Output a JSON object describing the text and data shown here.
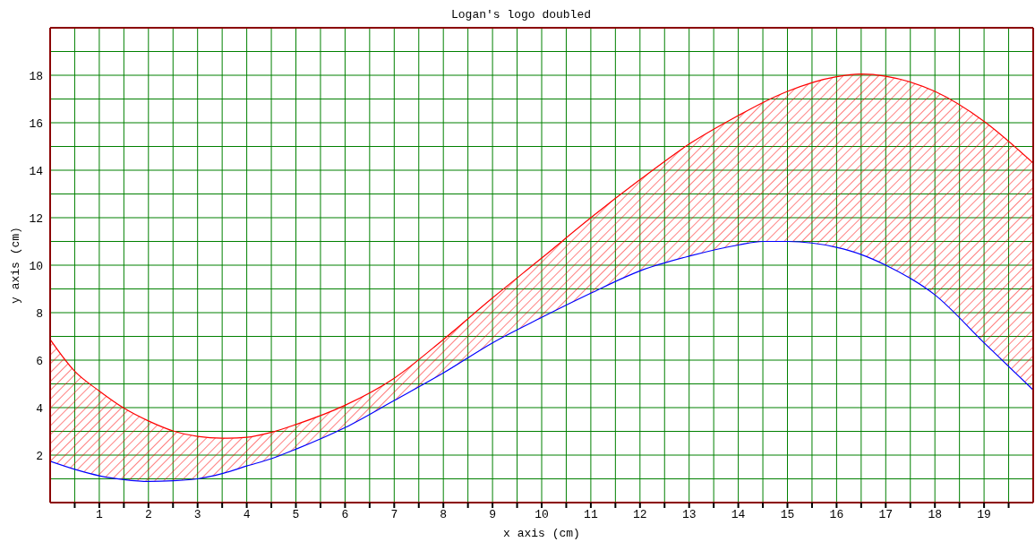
{
  "chart_data": {
    "type": "line",
    "title": "Logan's logo doubled",
    "xlabel": "x axis (cm)",
    "ylabel": "y axis (cm)",
    "x": [
      0,
      0.5,
      1,
      1.5,
      2,
      2.5,
      3,
      3.5,
      4,
      4.5,
      5,
      6,
      7,
      8,
      9,
      10,
      11,
      12,
      13,
      14,
      14.5,
      15,
      16,
      16.5,
      17,
      18,
      19,
      20
    ],
    "series": [
      {
        "color": "#0000ff",
        "values": [
          1.74,
          1.4,
          1.13,
          0.97,
          0.89,
          0.92,
          1.0,
          1.22,
          1.54,
          1.85,
          2.25,
          3.16,
          4.3,
          5.46,
          6.73,
          7.8,
          8.82,
          9.76,
          10.38,
          10.85,
          11.0,
          11.0,
          10.75,
          10.45,
          10.0,
          8.75,
          6.73,
          4.74
        ]
      },
      {
        "color": "#ff0000",
        "values": [
          6.87,
          5.53,
          4.7,
          3.98,
          3.44,
          3.02,
          2.79,
          2.71,
          2.75,
          2.96,
          3.29,
          4.1,
          5.24,
          6.87,
          8.62,
          10.3,
          12.0,
          13.6,
          15.1,
          16.3,
          16.85,
          17.32,
          17.94,
          18.05,
          17.96,
          17.32,
          16.06,
          14.3
        ],
        "lower": [
          1.74,
          1.4,
          1.13,
          0.97,
          0.89,
          0.92,
          1.0,
          1.22,
          1.54,
          1.85,
          2.25,
          3.16,
          4.3,
          5.46,
          6.73,
          7.8,
          8.82,
          9.76,
          10.38,
          10.85,
          11.0,
          11.0,
          10.75,
          10.45,
          10.0,
          8.75,
          6.73,
          4.74
        ],
        "upper": [
          6.87,
          5.53,
          4.7,
          3.98,
          3.44,
          3.02,
          2.79,
          2.71,
          2.75,
          2.96,
          3.29,
          4.1,
          5.24,
          6.87,
          8.62,
          10.3,
          12.0,
          13.6,
          15.1,
          16.3,
          16.85,
          17.32,
          17.94,
          18.05,
          17.96,
          17.32,
          16.06,
          14.3
        ]
      }
    ],
    "xlim": [
      0,
      20
    ],
    "xticks": [
      {
        "value": 0.5,
        "label": null
      },
      1,
      {
        "value": 1.5,
        "label": null
      },
      2,
      {
        "value": 2.5,
        "label": null
      },
      3,
      {
        "value": 3.5,
        "label": null
      },
      4,
      {
        "value": 4.5,
        "label": null
      },
      5,
      {
        "value": 5.5,
        "label": null
      },
      6,
      {
        "value": 6.5,
        "label": null
      },
      7,
      {
        "value": 7.5,
        "label": null
      },
      8,
      {
        "value": 8.5,
        "label": null
      },
      9,
      {
        "value": 9.5,
        "label": null
      },
      10,
      {
        "value": 10.5,
        "label": null
      },
      11,
      {
        "value": 11.5,
        "label": null
      },
      12,
      {
        "value": 12.5,
        "label": null
      },
      13,
      {
        "value": 13.5,
        "label": null
      },
      14,
      {
        "value": 14.5,
        "label": null
      },
      15,
      {
        "value": 15.5,
        "label": null
      },
      16,
      {
        "value": 16.5,
        "label": null
      },
      17,
      {
        "value": 17.5,
        "label": null
      },
      18,
      {
        "value": 18.5,
        "label": null
      },
      19,
      {
        "value": 19.5,
        "label": null
      }
    ],
    "ylim": [
      0,
      20
    ],
    "yticks": [
      {
        "value": 1,
        "label": null
      },
      2,
      {
        "value": 3,
        "label": null
      },
      4,
      {
        "value": 5,
        "label": null
      },
      6,
      {
        "value": 7,
        "label": null
      },
      8,
      {
        "value": 9,
        "label": null
      },
      10,
      {
        "value": 11,
        "label": null
      },
      12,
      {
        "value": 13,
        "label": null
      },
      14,
      {
        "value": 15,
        "label": null
      },
      16,
      {
        "value": 17,
        "label": null
      },
      18,
      {
        "value": 19,
        "label": null
      }
    ],
    "grid": true,
    "legend": false,
    "marker": "none",
    "line_style": "solid"
  }
}
